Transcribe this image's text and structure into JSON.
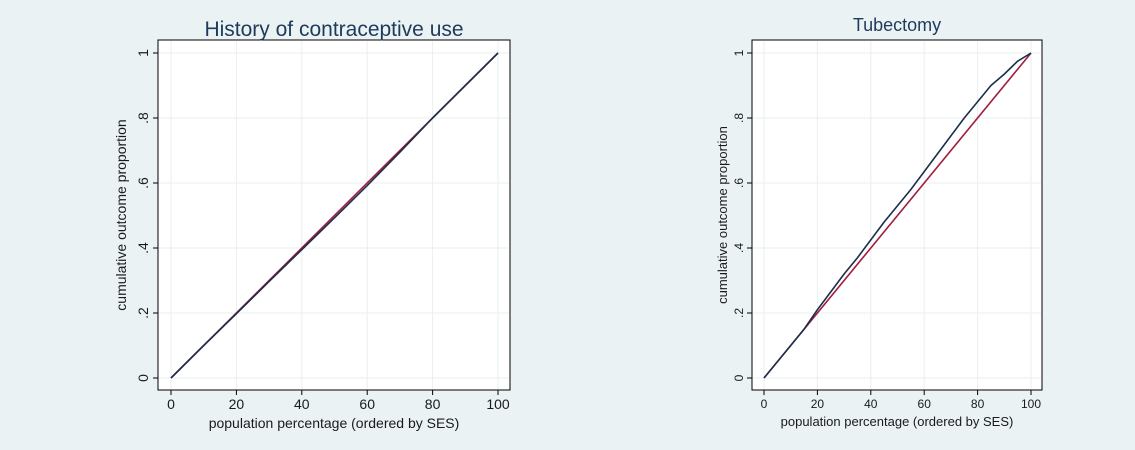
{
  "colors": {
    "background": "#eaf2f3",
    "plot_area": "#ffffff",
    "grid": "#e9efef",
    "equality_line": "#a01c3c",
    "concentration_curve": "#1c2f4a",
    "title": "#1f3b5c"
  },
  "chart_data": [
    {
      "type": "line",
      "title": "History of contraceptive use",
      "xlabel": "population percentage (ordered by SES)",
      "ylabel": "cumulative outcome proportion",
      "xlim": [
        0,
        100
      ],
      "ylim": [
        0,
        1
      ],
      "x_ticks": [
        "0",
        "20",
        "40",
        "60",
        "80",
        "100"
      ],
      "y_ticks": [
        "0",
        ".2",
        ".4",
        ".6",
        ".8",
        "1"
      ],
      "grid": true,
      "legend": "none",
      "series": [
        {
          "color": "#a01c3c",
          "x": [
            0,
            100
          ],
          "y": [
            0,
            1
          ]
        },
        {
          "color": "#1c2f4a",
          "x": [
            0,
            10,
            20,
            30,
            40,
            50,
            60,
            70,
            80,
            90,
            100
          ],
          "y": [
            0,
            0.1,
            0.198,
            0.297,
            0.395,
            0.493,
            0.592,
            0.695,
            0.8,
            0.9,
            1.0
          ]
        }
      ]
    },
    {
      "type": "line",
      "title": "Tubectomy",
      "xlabel": "population percentage (ordered by SES)",
      "ylabel": "cumulative outcome proportion",
      "xlim": [
        0,
        100
      ],
      "ylim": [
        0,
        1
      ],
      "x_ticks": [
        "0",
        "20",
        "40",
        "60",
        "80",
        "100"
      ],
      "y_ticks": [
        "0",
        ".2",
        ".4",
        ".6",
        ".8",
        "1"
      ],
      "grid": true,
      "legend": "none",
      "series": [
        {
          "color": "#a01c3c",
          "x": [
            0,
            100
          ],
          "y": [
            0,
            1
          ]
        },
        {
          "color": "#1c2f4a",
          "x": [
            0,
            5,
            10,
            15,
            20,
            25,
            30,
            35,
            40,
            45,
            50,
            55,
            60,
            65,
            70,
            75,
            80,
            85,
            90,
            95,
            100
          ],
          "y": [
            0,
            0.05,
            0.1,
            0.15,
            0.21,
            0.265,
            0.32,
            0.37,
            0.425,
            0.48,
            0.53,
            0.58,
            0.635,
            0.69,
            0.745,
            0.8,
            0.85,
            0.9,
            0.935,
            0.975,
            1.0
          ]
        }
      ]
    }
  ]
}
